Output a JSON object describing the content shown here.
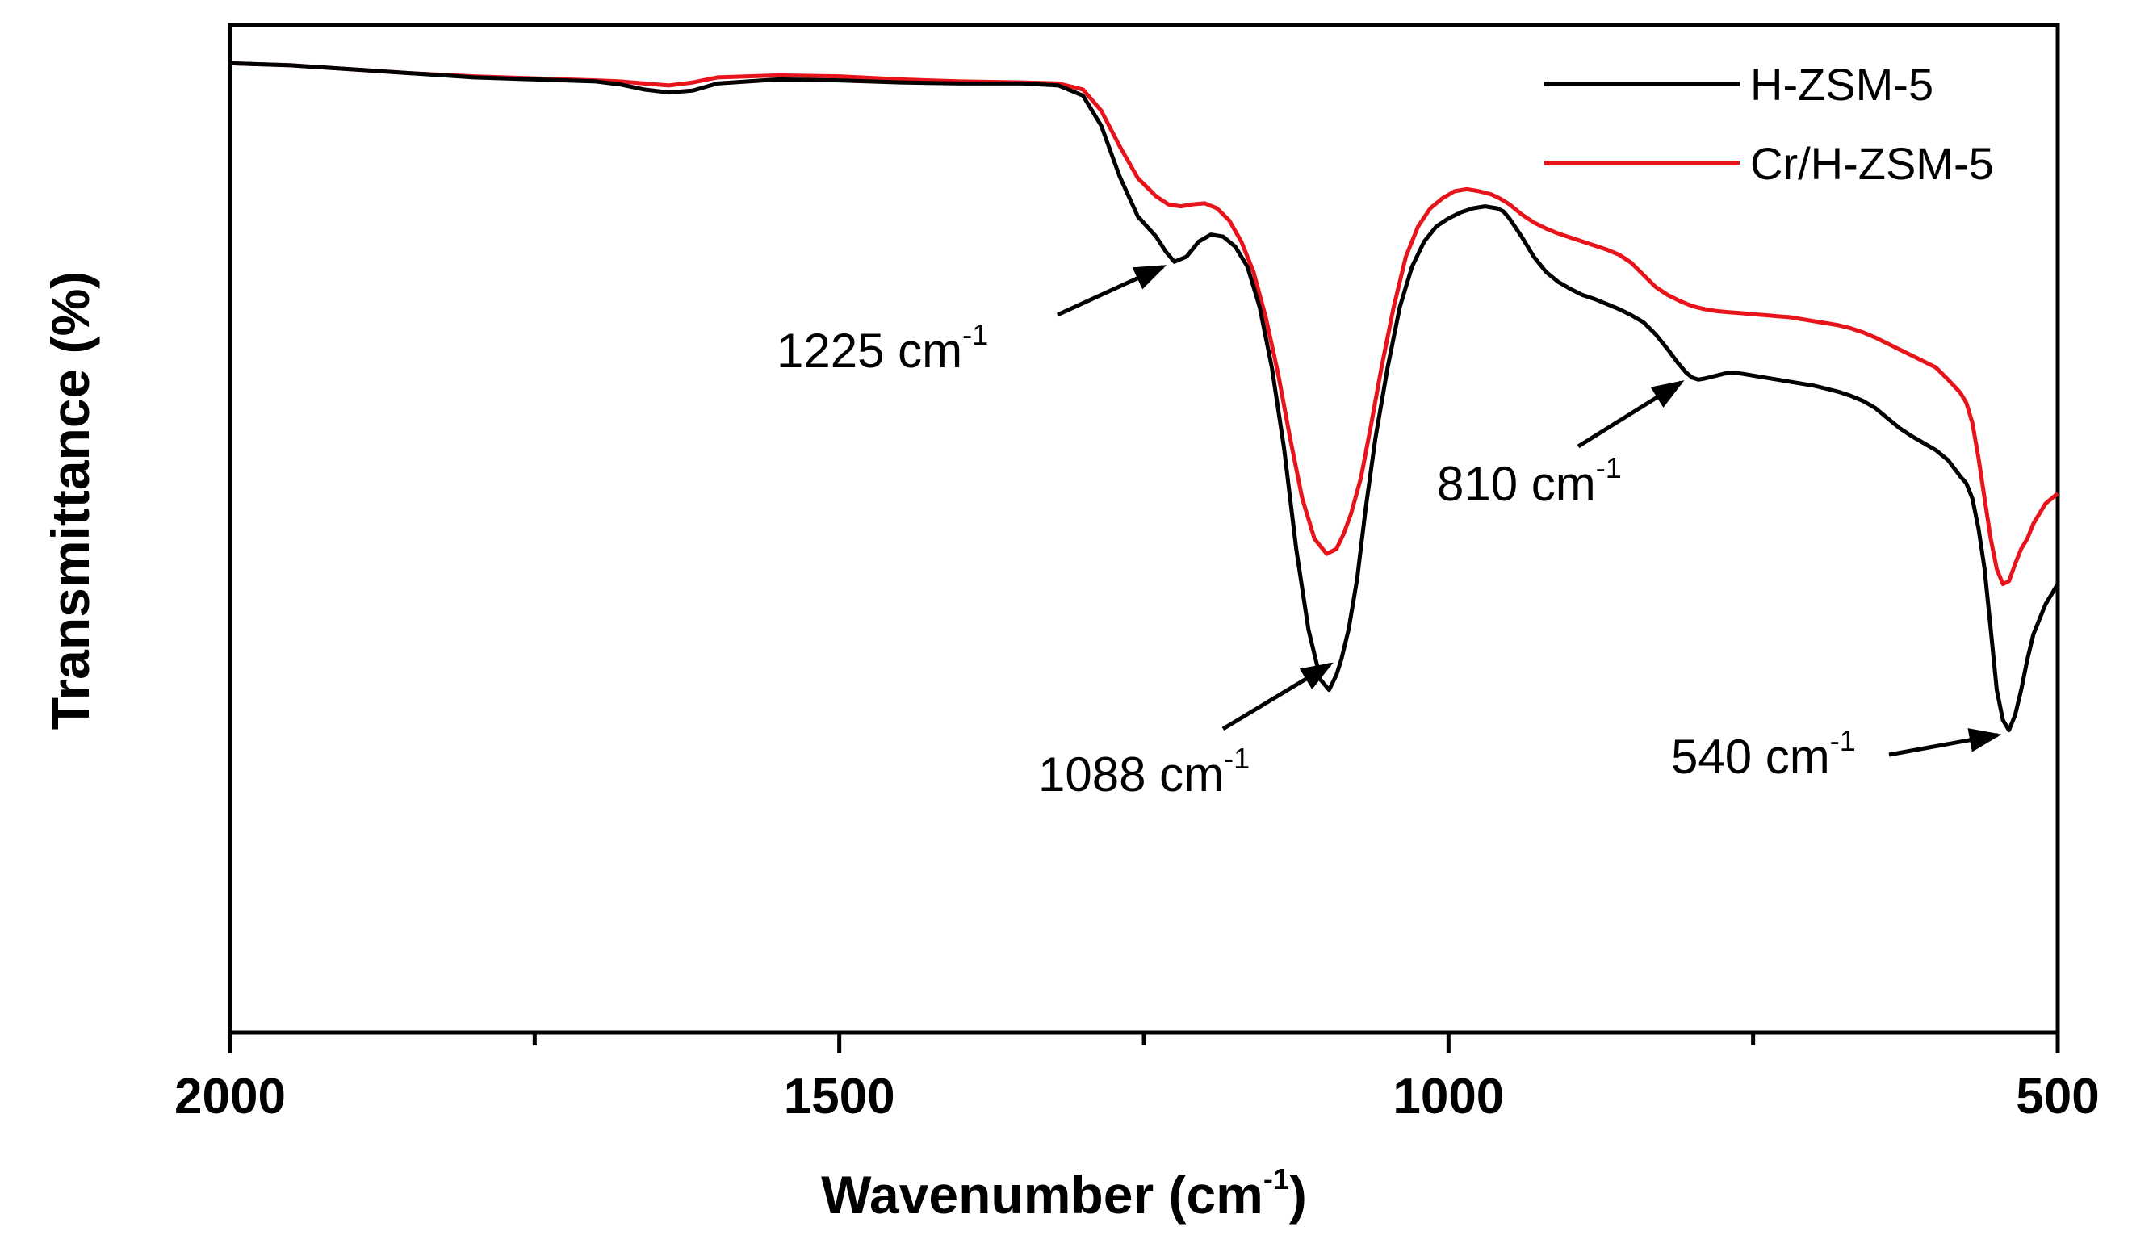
{
  "chart_data": {
    "type": "line",
    "title": "",
    "xlabel": "Wavenumber (cm",
    "xlabel_sup": "-1",
    "xlabel_tail": ")",
    "ylabel": "Transmittance (%)",
    "xlim": [
      2000,
      500
    ],
    "ylim": [
      0,
      100
    ],
    "xticks": [
      2000,
      1500,
      1000,
      500
    ],
    "xtick_labels": [
      "2000",
      "1500",
      "1000",
      "500"
    ],
    "minor_xticks": [
      1750,
      1250,
      750
    ],
    "y_tick_labels_shown": false,
    "grid": false,
    "legend_position": "top-right",
    "series": [
      {
        "name": "H-ZSM-5",
        "color": "#000000",
        "x": [
          2000,
          1950,
          1900,
          1850,
          1800,
          1750,
          1700,
          1680,
          1660,
          1640,
          1620,
          1600,
          1550,
          1500,
          1450,
          1400,
          1350,
          1320,
          1300,
          1285,
          1270,
          1255,
          1240,
          1232,
          1225,
          1215,
          1205,
          1195,
          1185,
          1175,
          1165,
          1155,
          1145,
          1135,
          1125,
          1115,
          1105,
          1098,
          1092,
          1088,
          1082,
          1075,
          1068,
          1060,
          1050,
          1040,
          1030,
          1020,
          1010,
          1000,
          990,
          980,
          970,
          960,
          955,
          950,
          940,
          930,
          920,
          910,
          900,
          890,
          880,
          870,
          860,
          850,
          840,
          830,
          820,
          812,
          805,
          800,
          795,
          790,
          780,
          770,
          760,
          750,
          740,
          730,
          720,
          710,
          700,
          690,
          680,
          670,
          660,
          650,
          640,
          630,
          620,
          610,
          600,
          590,
          580,
          575,
          570,
          565,
          560,
          555,
          550,
          545,
          540,
          535,
          530,
          525,
          520,
          510,
          500
        ],
        "y": [
          96.2,
          96.0,
          95.6,
          95.2,
          94.8,
          94.6,
          94.4,
          94.1,
          93.6,
          93.3,
          93.5,
          94.2,
          94.6,
          94.5,
          94.3,
          94.2,
          94.2,
          94.0,
          93.0,
          90.0,
          85.0,
          81.0,
          79.0,
          77.5,
          76.5,
          77.0,
          78.5,
          79.2,
          79.0,
          78.0,
          76.0,
          72.0,
          66.0,
          58.0,
          48.0,
          40.0,
          35.0,
          34.0,
          35.5,
          37.0,
          40.0,
          45.0,
          52.0,
          59.0,
          66.0,
          72.0,
          76.0,
          78.5,
          80.0,
          80.8,
          81.4,
          81.8,
          82.0,
          81.8,
          81.5,
          80.8,
          79.0,
          77.0,
          75.5,
          74.5,
          73.8,
          73.2,
          72.8,
          72.3,
          71.8,
          71.2,
          70.5,
          69.3,
          67.8,
          66.5,
          65.5,
          65.0,
          64.8,
          64.9,
          65.2,
          65.5,
          65.4,
          65.2,
          65.0,
          64.8,
          64.6,
          64.4,
          64.2,
          63.9,
          63.6,
          63.2,
          62.7,
          62.0,
          61.0,
          60.0,
          59.2,
          58.5,
          57.8,
          56.8,
          55.2,
          54.5,
          53.0,
          50.0,
          46.0,
          40.0,
          34.0,
          31.0,
          30.0,
          31.5,
          34.0,
          37.0,
          39.5,
          42.5,
          44.5
        ]
      },
      {
        "name": "Cr/H-ZSM-5",
        "color": "#e8141b",
        "x": [
          2000,
          1950,
          1900,
          1850,
          1800,
          1750,
          1700,
          1680,
          1660,
          1640,
          1620,
          1600,
          1550,
          1500,
          1450,
          1400,
          1350,
          1320,
          1300,
          1285,
          1270,
          1255,
          1240,
          1230,
          1220,
          1210,
          1200,
          1190,
          1180,
          1170,
          1160,
          1150,
          1140,
          1130,
          1120,
          1110,
          1100,
          1092,
          1086,
          1080,
          1072,
          1064,
          1055,
          1045,
          1035,
          1025,
          1015,
          1005,
          995,
          985,
          975,
          965,
          958,
          950,
          940,
          930,
          920,
          910,
          900,
          890,
          880,
          870,
          860,
          850,
          840,
          830,
          820,
          810,
          800,
          790,
          780,
          770,
          760,
          750,
          740,
          730,
          720,
          710,
          700,
          690,
          680,
          670,
          660,
          650,
          640,
          630,
          620,
          610,
          600,
          590,
          580,
          575,
          570,
          565,
          560,
          555,
          550,
          545,
          540,
          535,
          530,
          525,
          520,
          510,
          500
        ],
        "y": [
          96.2,
          96.0,
          95.6,
          95.2,
          94.9,
          94.7,
          94.5,
          94.4,
          94.2,
          94.0,
          94.3,
          94.8,
          95.0,
          94.9,
          94.6,
          94.4,
          94.3,
          94.2,
          93.6,
          91.5,
          88.0,
          84.8,
          83.0,
          82.2,
          82.0,
          82.2,
          82.3,
          81.8,
          80.6,
          78.5,
          75.5,
          71.0,
          65.5,
          59.0,
          53.0,
          49.0,
          47.5,
          48.0,
          49.5,
          51.5,
          55.0,
          60.0,
          66.0,
          72.0,
          77.0,
          80.0,
          81.8,
          82.8,
          83.5,
          83.7,
          83.5,
          83.2,
          82.8,
          82.2,
          81.2,
          80.4,
          79.8,
          79.3,
          78.9,
          78.5,
          78.1,
          77.7,
          77.2,
          76.4,
          75.2,
          74.0,
          73.2,
          72.6,
          72.1,
          71.8,
          71.6,
          71.5,
          71.4,
          71.3,
          71.2,
          71.1,
          71.0,
          70.8,
          70.6,
          70.4,
          70.2,
          69.9,
          69.5,
          69.0,
          68.4,
          67.8,
          67.2,
          66.6,
          66.0,
          64.8,
          63.5,
          62.5,
          60.5,
          57.0,
          53.0,
          49.0,
          46.0,
          44.5,
          44.8,
          46.5,
          48.0,
          49.0,
          50.5,
          52.5,
          53.5
        ]
      }
    ],
    "annotations": [
      {
        "label": "1225 cm",
        "sup": "-1",
        "target_x": 1225,
        "target_series": "H-ZSM-5"
      },
      {
        "label": "1088 cm",
        "sup": "-1",
        "target_x": 1088,
        "target_series": "H-ZSM-5"
      },
      {
        "label": "810 cm",
        "sup": "-1",
        "target_x": 800,
        "target_series": "H-ZSM-5"
      },
      {
        "label": "540 cm",
        "sup": "-1",
        "target_x": 540,
        "target_series": "H-ZSM-5"
      }
    ]
  }
}
